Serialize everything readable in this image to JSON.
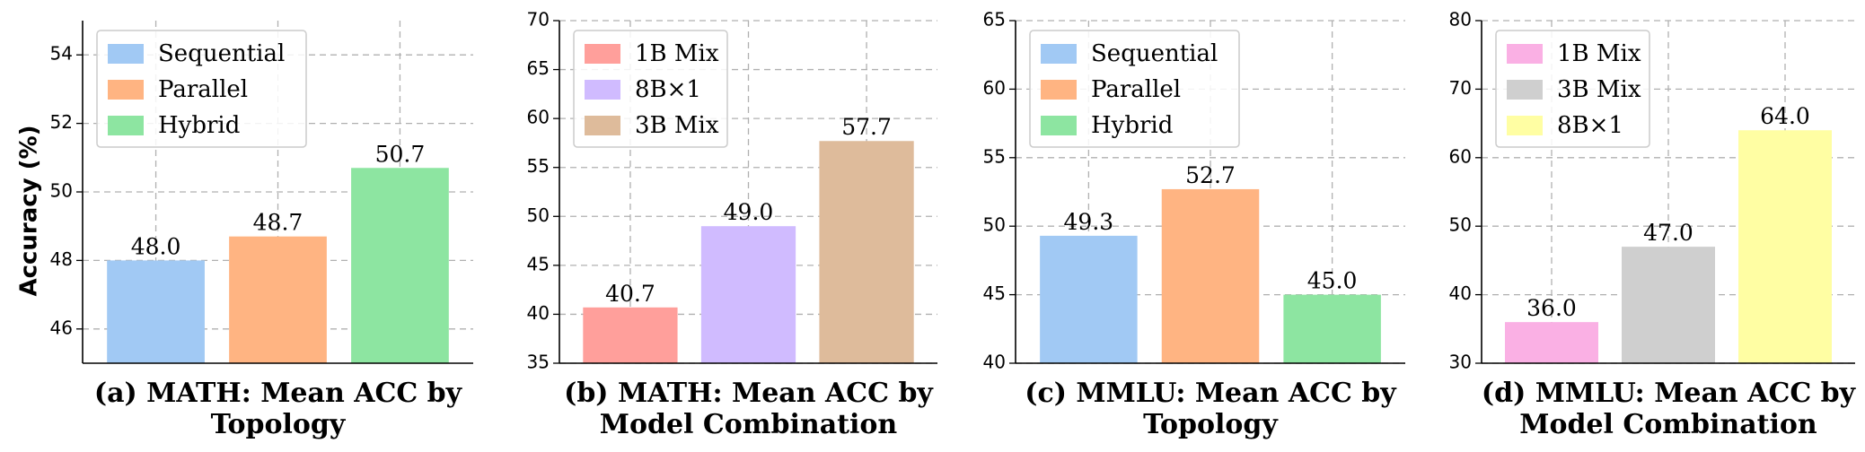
{
  "y_axis_label": "Accuracy (%)",
  "chart_data": [
    {
      "type": "bar",
      "caption_lines": [
        "(a) MATH: Mean ACC by",
        "Topology"
      ],
      "categories": [
        "Sequential",
        "Parallel",
        "Hybrid"
      ],
      "values": [
        48.0,
        48.7,
        50.7
      ],
      "value_labels": [
        "48.0",
        "48.7",
        "50.7"
      ],
      "colors": [
        "#a1c9f4",
        "#ffb482",
        "#8de5a1"
      ],
      "ylim": [
        45,
        55
      ],
      "yticks": [
        46,
        48,
        50,
        52,
        54
      ],
      "ylabel": "Accuracy (%)",
      "legend": [
        "Sequential",
        "Parallel",
        "Hybrid"
      ],
      "legend_position": "top-left"
    },
    {
      "type": "bar",
      "caption_lines": [
        "(b) MATH: Mean ACC by",
        "Model Combination"
      ],
      "categories": [
        "1B Mix",
        "8B×1",
        "3B Mix"
      ],
      "values": [
        40.7,
        49.0,
        57.7
      ],
      "value_labels": [
        "40.7",
        "49.0",
        "57.7"
      ],
      "colors": [
        "#ff9f9b",
        "#d0bbff",
        "#debb9b"
      ],
      "ylim": [
        35,
        70
      ],
      "yticks": [
        35,
        40,
        45,
        50,
        55,
        60,
        65,
        70
      ],
      "legend": [
        "1B Mix",
        "8B×1",
        "3B Mix"
      ],
      "legend_position": "top-left"
    },
    {
      "type": "bar",
      "caption_lines": [
        "(c) MMLU: Mean ACC by",
        "Topology"
      ],
      "categories": [
        "Sequential",
        "Parallel",
        "Hybrid"
      ],
      "values": [
        49.3,
        52.7,
        45.0
      ],
      "value_labels": [
        "49.3",
        "52.7",
        "45.0"
      ],
      "colors": [
        "#a1c9f4",
        "#ffb482",
        "#8de5a1"
      ],
      "ylim": [
        40,
        65
      ],
      "yticks": [
        40,
        45,
        50,
        55,
        60,
        65
      ],
      "legend": [
        "Sequential",
        "Parallel",
        "Hybrid"
      ],
      "legend_position": "top-left"
    },
    {
      "type": "bar",
      "caption_lines": [
        "(d) MMLU: Mean ACC by",
        "Model Combination"
      ],
      "categories": [
        "1B Mix",
        "3B Mix",
        "8B×1"
      ],
      "values": [
        36.0,
        47.0,
        64.0
      ],
      "value_labels": [
        "36.0",
        "47.0",
        "64.0"
      ],
      "colors": [
        "#fab0e4",
        "#cfcfcf",
        "#fffea3"
      ],
      "ylim": [
        30,
        80
      ],
      "yticks": [
        30,
        40,
        50,
        60,
        70,
        80
      ],
      "legend": [
        "1B Mix",
        "3B Mix",
        "8B×1"
      ],
      "legend_position": "top-left"
    }
  ]
}
